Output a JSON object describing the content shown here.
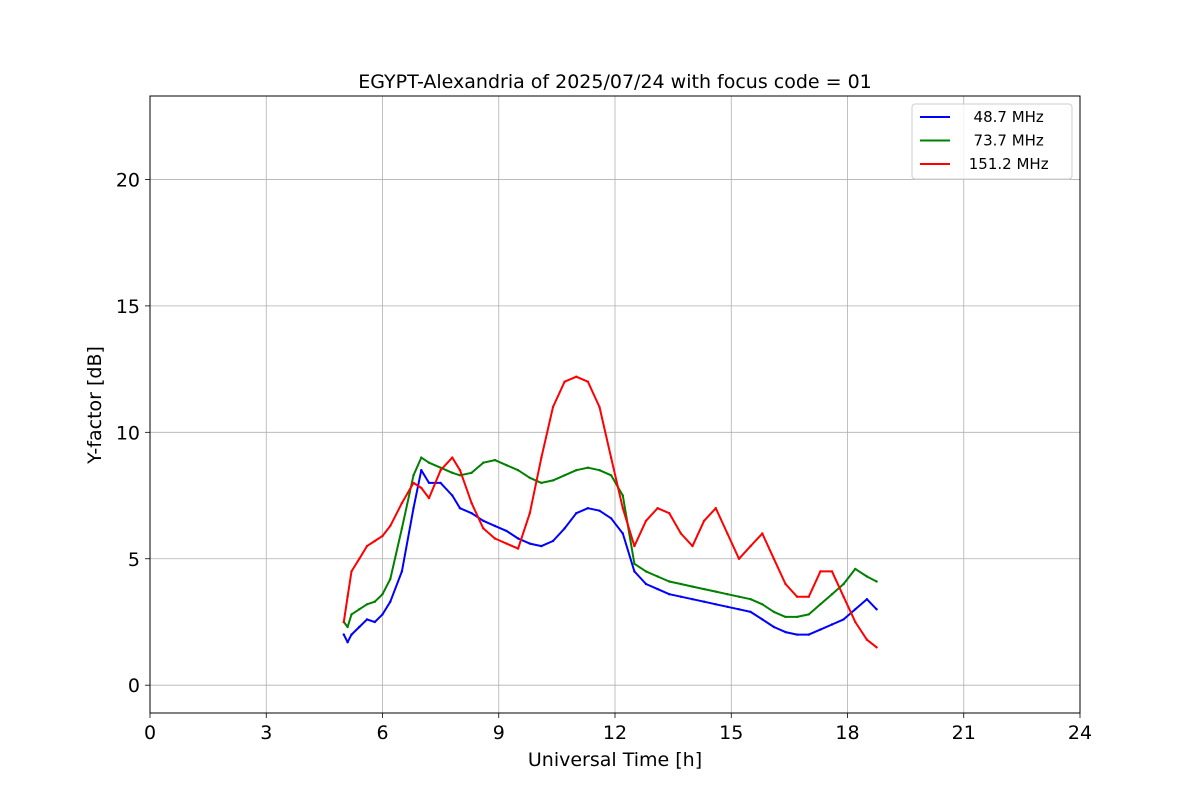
{
  "chart_data": {
    "type": "line",
    "title": "EGYPT-Alexandria of 2025/07/24 with focus code = 01",
    "xlabel": "Universal Time [h]",
    "ylabel": "Y-factor [dB]",
    "xlim": [
      0,
      24
    ],
    "ylim": [
      -1.1,
      23.3
    ],
    "xticks": [
      "0",
      "3",
      "6",
      "9",
      "12",
      "15",
      "18",
      "21",
      "24"
    ],
    "yticks": [
      "0",
      "5",
      "10",
      "15",
      "20"
    ],
    "grid": true,
    "legend_position": "top-right",
    "series": [
      {
        "name": "  48.7 MHz",
        "color": "#0000ff",
        "x": [
          5.0,
          5.1,
          5.2,
          5.4,
          5.6,
          5.8,
          6.0,
          6.2,
          6.5,
          6.8,
          7.0,
          7.2,
          7.5,
          7.8,
          8.0,
          8.3,
          8.6,
          8.9,
          9.2,
          9.5,
          9.8,
          10.1,
          10.4,
          10.7,
          11.0,
          11.3,
          11.6,
          11.9,
          12.2,
          12.5,
          12.8,
          13.1,
          13.4,
          13.7,
          14.0,
          14.3,
          14.6,
          14.9,
          15.2,
          15.5,
          15.8,
          16.1,
          16.4,
          16.7,
          17.0,
          17.3,
          17.6,
          17.9,
          18.2,
          18.5,
          18.75
        ],
        "values": [
          2.0,
          1.7,
          2.0,
          2.3,
          2.6,
          2.5,
          2.8,
          3.3,
          4.5,
          7.0,
          8.5,
          8.0,
          8.0,
          7.5,
          7.0,
          6.8,
          6.5,
          6.3,
          6.1,
          5.8,
          5.6,
          5.5,
          5.7,
          6.2,
          6.8,
          7.0,
          6.9,
          6.6,
          6.0,
          4.5,
          4.0,
          3.8,
          3.6,
          3.5,
          3.4,
          3.3,
          3.2,
          3.1,
          3.0,
          2.9,
          2.6,
          2.3,
          2.1,
          2.0,
          2.0,
          2.2,
          2.4,
          2.6,
          3.0,
          3.4,
          3.0
        ]
      },
      {
        "name": "  73.7 MHz",
        "color": "#008000",
        "x": [
          5.0,
          5.1,
          5.2,
          5.4,
          5.6,
          5.8,
          6.0,
          6.2,
          6.5,
          6.8,
          7.0,
          7.2,
          7.5,
          7.8,
          8.0,
          8.3,
          8.6,
          8.9,
          9.2,
          9.5,
          9.8,
          10.1,
          10.4,
          10.7,
          11.0,
          11.3,
          11.6,
          11.9,
          12.2,
          12.5,
          12.8,
          13.1,
          13.4,
          13.7,
          14.0,
          14.3,
          14.6,
          14.9,
          15.2,
          15.5,
          15.8,
          16.1,
          16.4,
          16.7,
          17.0,
          17.3,
          17.6,
          17.9,
          18.2,
          18.5,
          18.75
        ],
        "values": [
          2.5,
          2.3,
          2.8,
          3.0,
          3.2,
          3.3,
          3.6,
          4.2,
          6.2,
          8.3,
          9.0,
          8.8,
          8.6,
          8.4,
          8.3,
          8.4,
          8.8,
          8.9,
          8.7,
          8.5,
          8.2,
          8.0,
          8.1,
          8.3,
          8.5,
          8.6,
          8.5,
          8.3,
          7.5,
          4.8,
          4.5,
          4.3,
          4.1,
          4.0,
          3.9,
          3.8,
          3.7,
          3.6,
          3.5,
          3.4,
          3.2,
          2.9,
          2.7,
          2.7,
          2.8,
          3.2,
          3.6,
          4.0,
          4.6,
          4.3,
          4.1
        ]
      },
      {
        "name": " 151.2 MHz",
        "color": "#ff0000",
        "x": [
          5.0,
          5.1,
          5.2,
          5.4,
          5.6,
          5.8,
          6.0,
          6.2,
          6.5,
          6.8,
          7.0,
          7.2,
          7.5,
          7.8,
          8.0,
          8.3,
          8.6,
          8.9,
          9.2,
          9.5,
          9.8,
          10.1,
          10.4,
          10.7,
          11.0,
          11.3,
          11.6,
          11.9,
          12.2,
          12.5,
          12.8,
          13.1,
          13.4,
          13.7,
          14.0,
          14.3,
          14.6,
          14.9,
          15.2,
          15.5,
          15.8,
          16.1,
          16.4,
          16.7,
          17.0,
          17.3,
          17.6,
          17.9,
          18.2,
          18.5,
          18.75
        ],
        "values": [
          2.5,
          3.5,
          4.5,
          5.0,
          5.5,
          5.7,
          5.9,
          6.3,
          7.2,
          8.0,
          7.8,
          7.4,
          8.5,
          9.0,
          8.5,
          7.2,
          6.2,
          5.8,
          5.6,
          5.4,
          6.8,
          9.0,
          11.0,
          12.0,
          12.2,
          12.0,
          11.0,
          9.0,
          7.0,
          5.5,
          6.5,
          7.0,
          6.8,
          6.0,
          5.5,
          6.5,
          7.0,
          6.0,
          5.0,
          5.5,
          6.0,
          5.0,
          4.0,
          3.5,
          3.5,
          4.5,
          4.5,
          3.5,
          2.5,
          1.8,
          1.5
        ]
      }
    ]
  }
}
